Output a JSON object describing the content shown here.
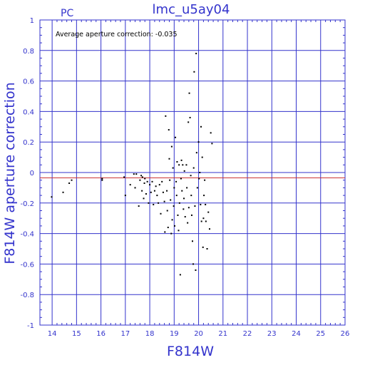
{
  "chart_data": {
    "type": "scatter",
    "title": "lmc_u5ay04",
    "panel_label": "PC",
    "xlabel": "F814W",
    "ylabel": "F814W aperture correction",
    "annotation": "Average aperture correction: -0.035",
    "average_correction": -0.035,
    "xlim": [
      13.5,
      26
    ],
    "ylim": [
      -1,
      1
    ],
    "xticks": [
      14,
      15,
      16,
      17,
      18,
      19,
      20,
      21,
      22,
      23,
      24,
      25,
      26
    ],
    "yticks": [
      -1,
      -0.8,
      -0.6,
      -0.4,
      -0.2,
      0,
      0.2,
      0.4,
      0.6,
      0.8,
      1
    ],
    "ytick_labels": [
      "-1",
      "-0.8",
      "-0.6",
      "-0.4",
      "-0.2",
      "0",
      "0.2",
      "0.4",
      "0.6",
      "0.8",
      "1"
    ],
    "grid": true,
    "colors": {
      "axes": "#3333cc",
      "grid": "#3333cc",
      "zero_line": "#3333cc",
      "average_line": "#cc3333",
      "points": "#000000"
    },
    "points": [
      [
        13.98,
        -0.16
      ],
      [
        14.45,
        -0.13
      ],
      [
        14.7,
        -0.07
      ],
      [
        14.8,
        -0.05
      ],
      [
        16.05,
        -0.04
      ],
      [
        16.05,
        -0.05
      ],
      [
        16.95,
        -0.03
      ],
      [
        17.0,
        -0.15
      ],
      [
        17.2,
        -0.08
      ],
      [
        17.35,
        -0.01
      ],
      [
        17.4,
        -0.1
      ],
      [
        17.45,
        -0.01
      ],
      [
        17.55,
        -0.22
      ],
      [
        17.6,
        -0.05
      ],
      [
        17.65,
        -0.02
      ],
      [
        17.68,
        -0.12
      ],
      [
        17.7,
        -0.03
      ],
      [
        17.75,
        -0.17
      ],
      [
        17.78,
        -0.07
      ],
      [
        17.8,
        -0.04
      ],
      [
        17.85,
        -0.14
      ],
      [
        17.9,
        -0.06
      ],
      [
        17.95,
        -0.2
      ],
      [
        18.0,
        -0.08
      ],
      [
        18.05,
        -0.13
      ],
      [
        18.1,
        -0.06
      ],
      [
        18.15,
        -0.21
      ],
      [
        18.2,
        -0.12
      ],
      [
        18.25,
        -0.09
      ],
      [
        18.3,
        -0.15
      ],
      [
        18.35,
        -0.2
      ],
      [
        18.4,
        -0.08
      ],
      [
        18.45,
        -0.27
      ],
      [
        18.5,
        -0.06
      ],
      [
        18.55,
        -0.13
      ],
      [
        18.6,
        -0.19
      ],
      [
        18.62,
        -0.39
      ],
      [
        18.65,
        0.37
      ],
      [
        18.7,
        -0.12
      ],
      [
        18.72,
        -0.25
      ],
      [
        18.75,
        -0.36
      ],
      [
        18.78,
        0.28
      ],
      [
        18.8,
        0.09
      ],
      [
        18.82,
        -0.05
      ],
      [
        18.85,
        -0.18
      ],
      [
        18.88,
        -0.4
      ],
      [
        18.9,
        0.17
      ],
      [
        18.92,
        -0.31
      ],
      [
        18.95,
        0.03
      ],
      [
        18.98,
        -0.22
      ],
      [
        19.0,
        -0.1
      ],
      [
        19.02,
        -0.35
      ],
      [
        19.05,
        0.23
      ],
      [
        19.08,
        -0.06
      ],
      [
        19.1,
        -0.15
      ],
      [
        19.12,
        0.07
      ],
      [
        19.15,
        -0.28
      ],
      [
        19.18,
        -0.38
      ],
      [
        19.2,
        0.05
      ],
      [
        19.22,
        -0.2
      ],
      [
        19.25,
        -0.67
      ],
      [
        19.28,
        -0.04
      ],
      [
        19.3,
        0.08
      ],
      [
        19.32,
        -0.12
      ],
      [
        19.35,
        0.05
      ],
      [
        19.38,
        -0.24
      ],
      [
        19.4,
        -0.17
      ],
      [
        19.42,
        0.01
      ],
      [
        19.45,
        -0.29
      ],
      [
        19.5,
        0.05
      ],
      [
        19.52,
        -0.1
      ],
      [
        19.55,
        -0.33
      ],
      [
        19.58,
        0.33
      ],
      [
        19.6,
        -0.23
      ],
      [
        19.62,
        0.52
      ],
      [
        19.65,
        0.36
      ],
      [
        19.68,
        -0.02
      ],
      [
        19.7,
        -0.15
      ],
      [
        19.72,
        -0.28
      ],
      [
        19.75,
        -0.45
      ],
      [
        19.78,
        -0.6
      ],
      [
        19.8,
        0.03
      ],
      [
        19.82,
        0.66
      ],
      [
        19.85,
        -0.22
      ],
      [
        19.88,
        -0.64
      ],
      [
        19.9,
        0.78
      ],
      [
        19.92,
        0.13
      ],
      [
        19.95,
        -0.1
      ],
      [
        20.0,
        0.2
      ],
      [
        20.02,
        -0.04
      ],
      [
        20.05,
        0.0
      ],
      [
        20.08,
        -0.21
      ],
      [
        20.1,
        0.3
      ],
      [
        20.12,
        -0.32
      ],
      [
        20.15,
        0.1
      ],
      [
        20.18,
        -0.49
      ],
      [
        20.2,
        -0.3
      ],
      [
        20.22,
        -0.15
      ],
      [
        20.25,
        -0.05
      ],
      [
        20.28,
        -0.21
      ],
      [
        20.3,
        -0.32
      ],
      [
        20.35,
        -0.5
      ],
      [
        20.4,
        -0.26
      ],
      [
        20.45,
        -0.37
      ],
      [
        20.5,
        0.26
      ],
      [
        20.55,
        0.19
      ]
    ]
  }
}
